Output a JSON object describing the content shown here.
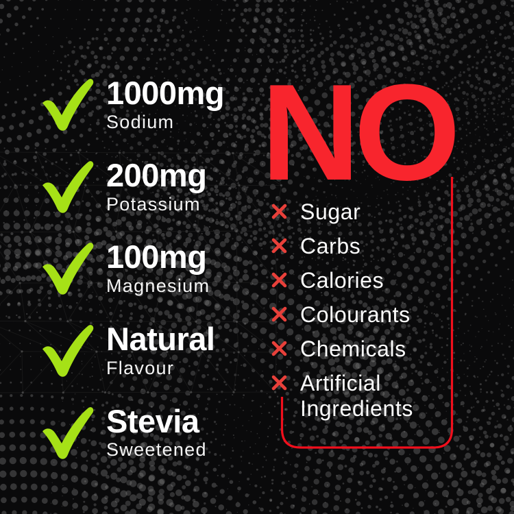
{
  "page": {
    "kind": "product-benefits-infographic"
  },
  "colors": {
    "background": "#0a0a0b",
    "check_green": "#a6e117",
    "headline_red": "#f8252d",
    "x_red": "#e8403a",
    "line_red": "#f10f1c",
    "text_white": "#ffffff",
    "dot_gray": "#9b9b9b"
  },
  "icons": {
    "benefit": "checkmark-icon",
    "negative": "x-mark-icon"
  },
  "benefits": [
    {
      "value": "1000mg",
      "label": "Sodium"
    },
    {
      "value": "200mg",
      "label": "Potassium"
    },
    {
      "value": "100mg",
      "label": "Magnesium"
    },
    {
      "value": "Natural",
      "label": "Flavour"
    },
    {
      "value": "Stevia",
      "label": "Sweetened"
    }
  ],
  "negatives": {
    "headline": "NO",
    "items": [
      "Sugar",
      "Carbs",
      "Calories",
      "Colourants",
      "Chemicals",
      "Artificial Ingredients"
    ]
  }
}
